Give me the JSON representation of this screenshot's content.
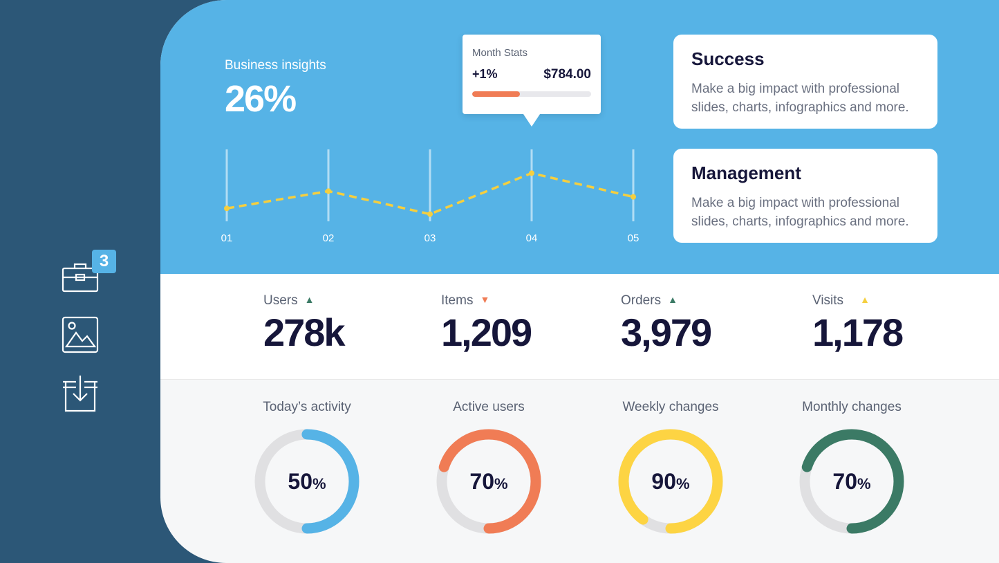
{
  "sidebar": {
    "items": [
      {
        "icon": "briefcase-icon",
        "badge": "3"
      },
      {
        "icon": "image-icon"
      },
      {
        "icon": "download-icon"
      }
    ]
  },
  "hero": {
    "insight_label": "Business insights",
    "insight_value": "26%",
    "tooltip": {
      "title": "Month Stats",
      "change": "+1%",
      "amount": "$784.00",
      "progress": 0.4
    }
  },
  "cards": [
    {
      "title": "Success",
      "text": "Make a big impact with professional slides, charts, infographics and more."
    },
    {
      "title": "Management",
      "text": "Make a big impact with professional slides, charts, infographics and more."
    }
  ],
  "chart_data": {
    "type": "line",
    "categories": [
      "01",
      "02",
      "03",
      "04",
      "05"
    ],
    "series": [
      {
        "values": [
          18,
          42,
          10,
          67,
          34
        ],
        "color": "#f5cf3f"
      }
    ],
    "ylim": [
      0,
      100
    ],
    "grid": true
  },
  "stats": [
    {
      "label": "Users",
      "value": "278k",
      "trend": "up",
      "arrow": "▲",
      "color": "#3b7a65"
    },
    {
      "label": "Items",
      "value": "1,209",
      "trend": "down",
      "arrow": "▼",
      "color": "#f07c55"
    },
    {
      "label": "Orders",
      "value": "3,979",
      "trend": "up",
      "arrow": "▲",
      "color": "#3b7a65"
    },
    {
      "label": "Visits",
      "value": "1,178",
      "trend": "up",
      "arrow": "▲",
      "color": "#f5cf3f"
    }
  ],
  "gauges": [
    {
      "label": "Today’s activity",
      "value": "50",
      "unit": "%",
      "fraction": 0.5,
      "color": "#56b3e6"
    },
    {
      "label": "Active users",
      "value": "70",
      "unit": "%",
      "fraction": 0.7,
      "color": "#f07c55"
    },
    {
      "label": "Weekly changes",
      "value": "90",
      "unit": "%",
      "fraction": 0.9,
      "color": "#fdd443"
    },
    {
      "label": "Monthly changes",
      "value": "70",
      "unit": "%",
      "fraction": 0.7,
      "color": "#3b7a65"
    }
  ]
}
